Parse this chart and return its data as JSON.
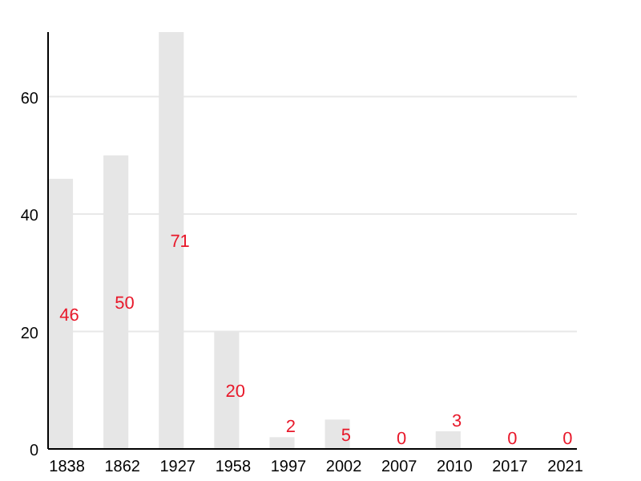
{
  "chart_data": {
    "type": "bar",
    "categories": [
      "1838",
      "1862",
      "1927",
      "1958",
      "1997",
      "2002",
      "2007",
      "2010",
      "2017",
      "2021"
    ],
    "values": [
      46,
      50,
      71,
      20,
      2,
      5,
      0,
      3,
      0,
      0
    ],
    "color": "#e6e6e6",
    "ylim": [
      0,
      71
    ],
    "yticks": [
      0,
      20,
      40,
      60
    ],
    "grid": "y",
    "data_labels": true
  }
}
